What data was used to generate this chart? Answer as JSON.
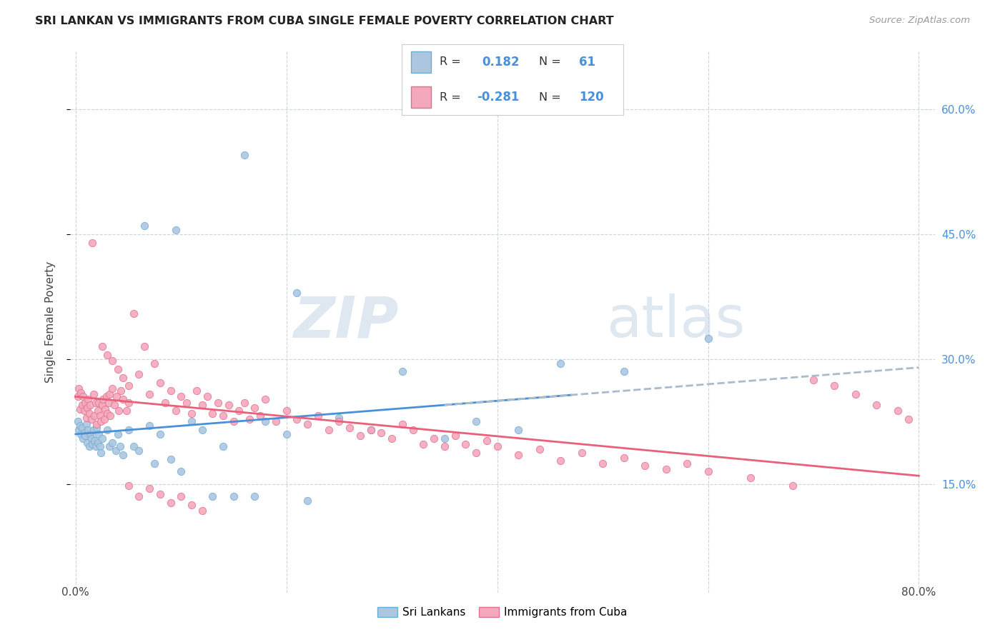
{
  "title": "SRI LANKAN VS IMMIGRANTS FROM CUBA SINGLE FEMALE POVERTY CORRELATION CHART",
  "source": "Source: ZipAtlas.com",
  "ylabel": "Single Female Poverty",
  "ytick_values": [
    0.15,
    0.3,
    0.45,
    0.6
  ],
  "xlim": [
    0.0,
    0.8
  ],
  "ylim": [
    0.02,
    0.65
  ],
  "sri_lankan_color": "#adc6e0",
  "sri_lankan_edge": "#6aaed6",
  "cuba_color": "#f4a8bc",
  "cuba_edge": "#e07090",
  "sri_line_color": "#4a90d9",
  "cuba_line_color": "#e8607a",
  "dash_line_color": "#aabbcc",
  "legend_r1": "0.182",
  "legend_n1": "61",
  "legend_r2": "-0.281",
  "legend_n2": "120",
  "sri_x": [
    0.002,
    0.003,
    0.004,
    0.005,
    0.006,
    0.007,
    0.008,
    0.009,
    0.01,
    0.011,
    0.012,
    0.013,
    0.014,
    0.015,
    0.016,
    0.017,
    0.018,
    0.019,
    0.02,
    0.021,
    0.022,
    0.023,
    0.024,
    0.025,
    0.03,
    0.032,
    0.035,
    0.038,
    0.04,
    0.042,
    0.045,
    0.05,
    0.055,
    0.06,
    0.065,
    0.07,
    0.075,
    0.08,
    0.09,
    0.095,
    0.1,
    0.11,
    0.12,
    0.13,
    0.14,
    0.15,
    0.16,
    0.17,
    0.18,
    0.2,
    0.21,
    0.22,
    0.25,
    0.28,
    0.31,
    0.35,
    0.38,
    0.42,
    0.46,
    0.52,
    0.6
  ],
  "sri_y": [
    0.225,
    0.215,
    0.22,
    0.21,
    0.218,
    0.205,
    0.212,
    0.208,
    0.222,
    0.2,
    0.215,
    0.195,
    0.21,
    0.205,
    0.198,
    0.215,
    0.202,
    0.195,
    0.218,
    0.2,
    0.21,
    0.195,
    0.188,
    0.205,
    0.215,
    0.195,
    0.2,
    0.19,
    0.21,
    0.195,
    0.185,
    0.215,
    0.195,
    0.19,
    0.46,
    0.22,
    0.175,
    0.21,
    0.18,
    0.455,
    0.165,
    0.225,
    0.215,
    0.135,
    0.195,
    0.135,
    0.545,
    0.135,
    0.225,
    0.21,
    0.38,
    0.13,
    0.23,
    0.215,
    0.285,
    0.205,
    0.225,
    0.215,
    0.295,
    0.285,
    0.325
  ],
  "cuba_x": [
    0.002,
    0.003,
    0.004,
    0.005,
    0.006,
    0.007,
    0.008,
    0.009,
    0.01,
    0.011,
    0.012,
    0.013,
    0.014,
    0.015,
    0.016,
    0.017,
    0.018,
    0.019,
    0.02,
    0.021,
    0.022,
    0.023,
    0.024,
    0.025,
    0.026,
    0.027,
    0.028,
    0.029,
    0.03,
    0.031,
    0.032,
    0.033,
    0.035,
    0.037,
    0.039,
    0.041,
    0.043,
    0.045,
    0.048,
    0.05,
    0.055,
    0.06,
    0.065,
    0.07,
    0.075,
    0.08,
    0.085,
    0.09,
    0.095,
    0.1,
    0.105,
    0.11,
    0.115,
    0.12,
    0.125,
    0.13,
    0.135,
    0.14,
    0.145,
    0.15,
    0.155,
    0.16,
    0.165,
    0.17,
    0.175,
    0.18,
    0.19,
    0.2,
    0.21,
    0.22,
    0.23,
    0.24,
    0.25,
    0.26,
    0.27,
    0.28,
    0.29,
    0.3,
    0.31,
    0.32,
    0.33,
    0.34,
    0.35,
    0.36,
    0.37,
    0.38,
    0.39,
    0.4,
    0.42,
    0.44,
    0.46,
    0.48,
    0.5,
    0.52,
    0.54,
    0.56,
    0.58,
    0.6,
    0.64,
    0.68,
    0.7,
    0.72,
    0.74,
    0.76,
    0.78,
    0.79,
    0.05,
    0.06,
    0.07,
    0.08,
    0.09,
    0.1,
    0.11,
    0.12,
    0.025,
    0.03,
    0.035,
    0.04,
    0.045,
    0.05
  ],
  "cuba_y": [
    0.255,
    0.265,
    0.24,
    0.26,
    0.245,
    0.255,
    0.238,
    0.248,
    0.23,
    0.242,
    0.252,
    0.235,
    0.245,
    0.228,
    0.44,
    0.258,
    0.232,
    0.248,
    0.222,
    0.238,
    0.248,
    0.232,
    0.225,
    0.245,
    0.252,
    0.228,
    0.24,
    0.255,
    0.235,
    0.248,
    0.258,
    0.232,
    0.265,
    0.245,
    0.255,
    0.238,
    0.262,
    0.252,
    0.238,
    0.248,
    0.355,
    0.282,
    0.315,
    0.258,
    0.295,
    0.272,
    0.248,
    0.262,
    0.238,
    0.255,
    0.248,
    0.235,
    0.262,
    0.245,
    0.255,
    0.235,
    0.248,
    0.232,
    0.245,
    0.225,
    0.238,
    0.248,
    0.228,
    0.242,
    0.232,
    0.252,
    0.225,
    0.238,
    0.228,
    0.222,
    0.232,
    0.215,
    0.225,
    0.218,
    0.208,
    0.215,
    0.212,
    0.205,
    0.222,
    0.215,
    0.198,
    0.205,
    0.195,
    0.208,
    0.198,
    0.188,
    0.202,
    0.195,
    0.185,
    0.192,
    0.178,
    0.188,
    0.175,
    0.182,
    0.172,
    0.168,
    0.175,
    0.165,
    0.158,
    0.148,
    0.275,
    0.268,
    0.258,
    0.245,
    0.238,
    0.228,
    0.148,
    0.135,
    0.145,
    0.138,
    0.128,
    0.135,
    0.125,
    0.118,
    0.315,
    0.305,
    0.298,
    0.288,
    0.278,
    0.268
  ]
}
